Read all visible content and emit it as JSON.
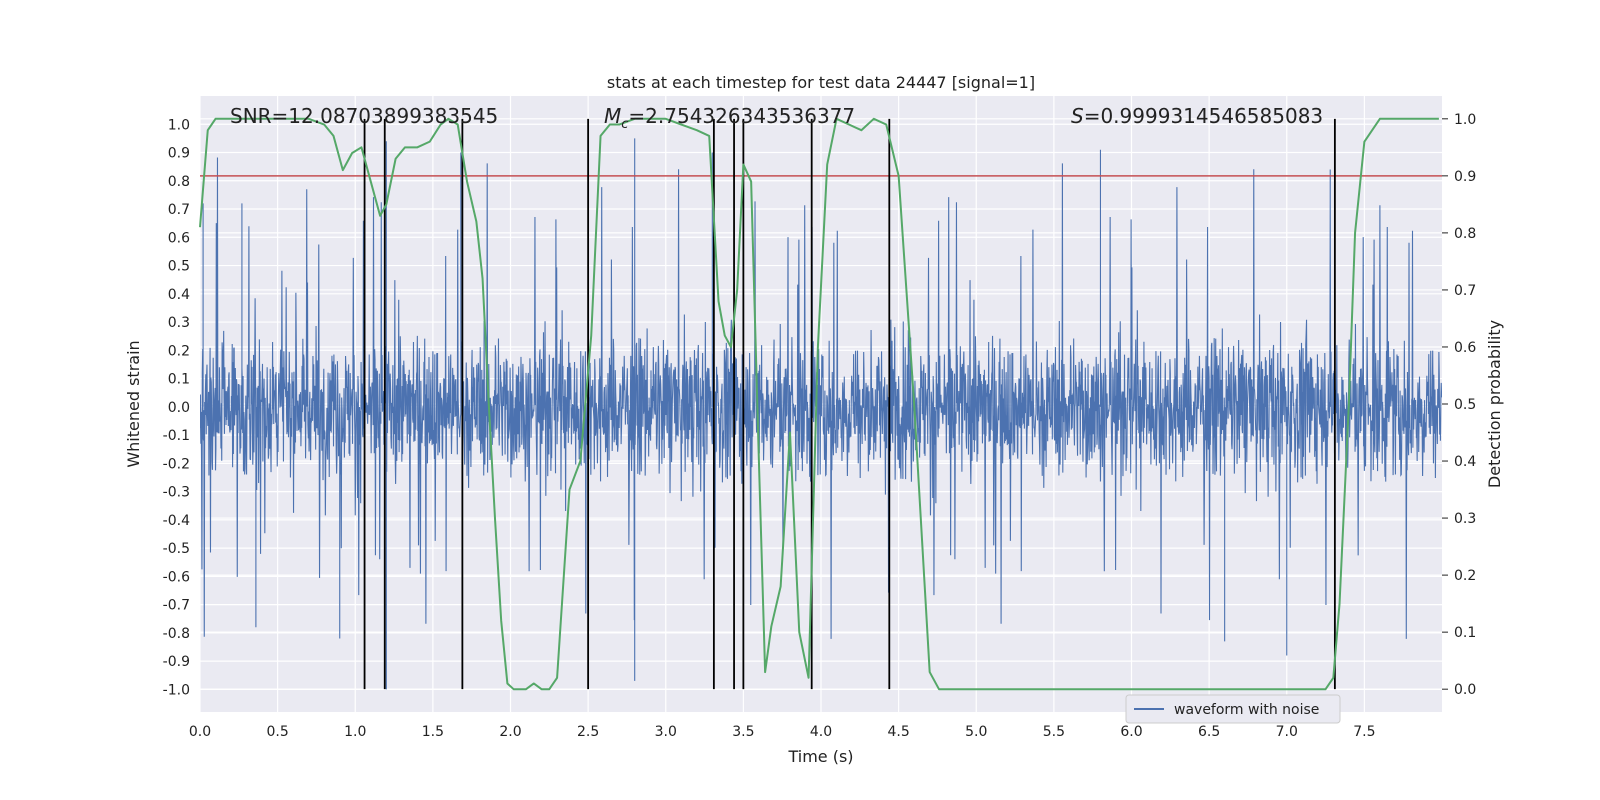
{
  "chart_data": {
    "type": "line",
    "title": "stats at each timestep for test data 24447 [signal=1]",
    "xlabel": "Time (s)",
    "ylabel_left": "Whitened strain",
    "ylabel_right": "Detection probability",
    "xlim": [
      0.0,
      8.0
    ],
    "ylim_left": [
      -1.08,
      1.1
    ],
    "ylim_right": [
      -0.04,
      1.04
    ],
    "x_ticks": [
      "0.0",
      "0.5",
      "1.0",
      "1.5",
      "2.0",
      "2.5",
      "3.0",
      "3.5",
      "4.0",
      "4.5",
      "5.0",
      "5.5",
      "6.0",
      "6.5",
      "7.0",
      "7.5"
    ],
    "y_ticks_left": [
      "1.0",
      "0.9",
      "0.8",
      "0.7",
      "0.6",
      "0.5",
      "0.4",
      "0.3",
      "0.2",
      "0.1",
      "0.0",
      "-0.1",
      "-0.2",
      "-0.3",
      "-0.4",
      "-0.5",
      "-0.6",
      "-0.7",
      "-0.8",
      "-0.9",
      "-1.0"
    ],
    "y_ticks_right": [
      "0.0",
      "0.1",
      "0.2",
      "0.3",
      "0.4",
      "0.5",
      "0.6",
      "0.7",
      "0.8",
      "0.9",
      "1.0"
    ],
    "grid": true,
    "legend": {
      "location": "lower center-right",
      "entries": [
        "waveform with noise"
      ]
    },
    "annotations": {
      "snr": "SNR=12.08703899383545",
      "mc_symbol": "M",
      "mc_sub": "c",
      "mc_value": "=2.754326343536377",
      "s_symbol": "S",
      "s_value": "=0.9999314546585083"
    },
    "series": [
      {
        "name": "waveform with noise",
        "axis": "left",
        "kind": "noise",
        "color": "#4c72b0",
        "duration": 8.0,
        "typical_amplitude": [
          -0.45,
          0.6
        ],
        "peaks": [
          {
            "x": 0.02,
            "y": 0.72
          },
          {
            "x": 0.27,
            "y": 0.72
          },
          {
            "x": 1.2,
            "y": 0.94
          },
          {
            "x": 1.2,
            "y": -1.0
          },
          {
            "x": 1.68,
            "y": 0.9
          },
          {
            "x": 2.8,
            "y": 0.95
          },
          {
            "x": 2.8,
            "y": -0.97
          },
          {
            "x": 3.3,
            "y": 0.9
          },
          {
            "x": 5.8,
            "y": 0.91
          },
          {
            "x": 7.28,
            "y": 0.84
          },
          {
            "x": 7.0,
            "y": -0.88
          },
          {
            "x": 0.36,
            "y": -0.78
          },
          {
            "x": 0.9,
            "y": -0.82
          },
          {
            "x": 6.6,
            "y": -0.83
          }
        ]
      },
      {
        "name": "detection probability",
        "axis": "right",
        "color": "#55a868",
        "x": [
          0.0,
          0.05,
          0.1,
          0.2,
          0.3,
          0.4,
          0.5,
          0.6,
          0.7,
          0.8,
          0.86,
          0.92,
          0.98,
          1.04,
          1.1,
          1.16,
          1.2,
          1.26,
          1.32,
          1.4,
          1.48,
          1.55,
          1.6,
          1.66,
          1.72,
          1.78,
          1.82,
          1.86,
          1.9,
          1.94,
          1.98,
          2.02,
          2.06,
          2.1,
          2.15,
          2.2,
          2.25,
          2.3,
          2.38,
          2.45,
          2.52,
          2.58,
          2.64,
          2.7,
          2.8,
          2.9,
          3.0,
          3.1,
          3.2,
          3.28,
          3.34,
          3.38,
          3.42,
          3.46,
          3.5,
          3.55,
          3.6,
          3.64,
          3.68,
          3.74,
          3.8,
          3.86,
          3.92,
          3.98,
          4.04,
          4.1,
          4.18,
          4.26,
          4.34,
          4.42,
          4.5,
          4.6,
          4.7,
          4.76,
          4.82,
          5.0,
          5.5,
          6.0,
          6.5,
          7.0,
          7.25,
          7.3,
          7.34,
          7.4,
          7.44,
          7.5,
          7.6,
          7.7,
          7.8,
          7.9,
          7.98
        ],
        "y": [
          0.81,
          0.98,
          1.0,
          1.0,
          1.0,
          1.0,
          1.0,
          1.0,
          1.0,
          0.99,
          0.97,
          0.91,
          0.94,
          0.95,
          0.89,
          0.83,
          0.85,
          0.93,
          0.95,
          0.95,
          0.96,
          0.99,
          1.0,
          0.99,
          0.89,
          0.82,
          0.72,
          0.5,
          0.3,
          0.12,
          0.01,
          0.0,
          0.0,
          0.0,
          0.01,
          0.0,
          0.0,
          0.02,
          0.35,
          0.4,
          0.62,
          0.97,
          0.99,
          0.99,
          1.0,
          1.0,
          1.0,
          0.99,
          0.98,
          0.97,
          0.68,
          0.62,
          0.6,
          0.7,
          0.92,
          0.89,
          0.4,
          0.03,
          0.11,
          0.18,
          0.45,
          0.1,
          0.02,
          0.6,
          0.92,
          1.0,
          0.99,
          0.98,
          1.0,
          0.99,
          0.9,
          0.5,
          0.03,
          0.0,
          0.0,
          0.0,
          0.0,
          0.0,
          0.0,
          0.0,
          0.0,
          0.02,
          0.15,
          0.5,
          0.8,
          0.96,
          1.0,
          1.0,
          1.0,
          1.0,
          1.0
        ]
      },
      {
        "name": "threshold",
        "axis": "right",
        "color": "#c44e52",
        "y": 0.9
      }
    ],
    "event_lines": {
      "color": "#000000",
      "x": [
        1.06,
        1.19,
        1.69,
        2.5,
        3.31,
        3.44,
        3.5,
        3.94,
        4.44,
        7.31
      ],
      "ymin_right": 0.0,
      "ymax_right": 1.0
    }
  }
}
